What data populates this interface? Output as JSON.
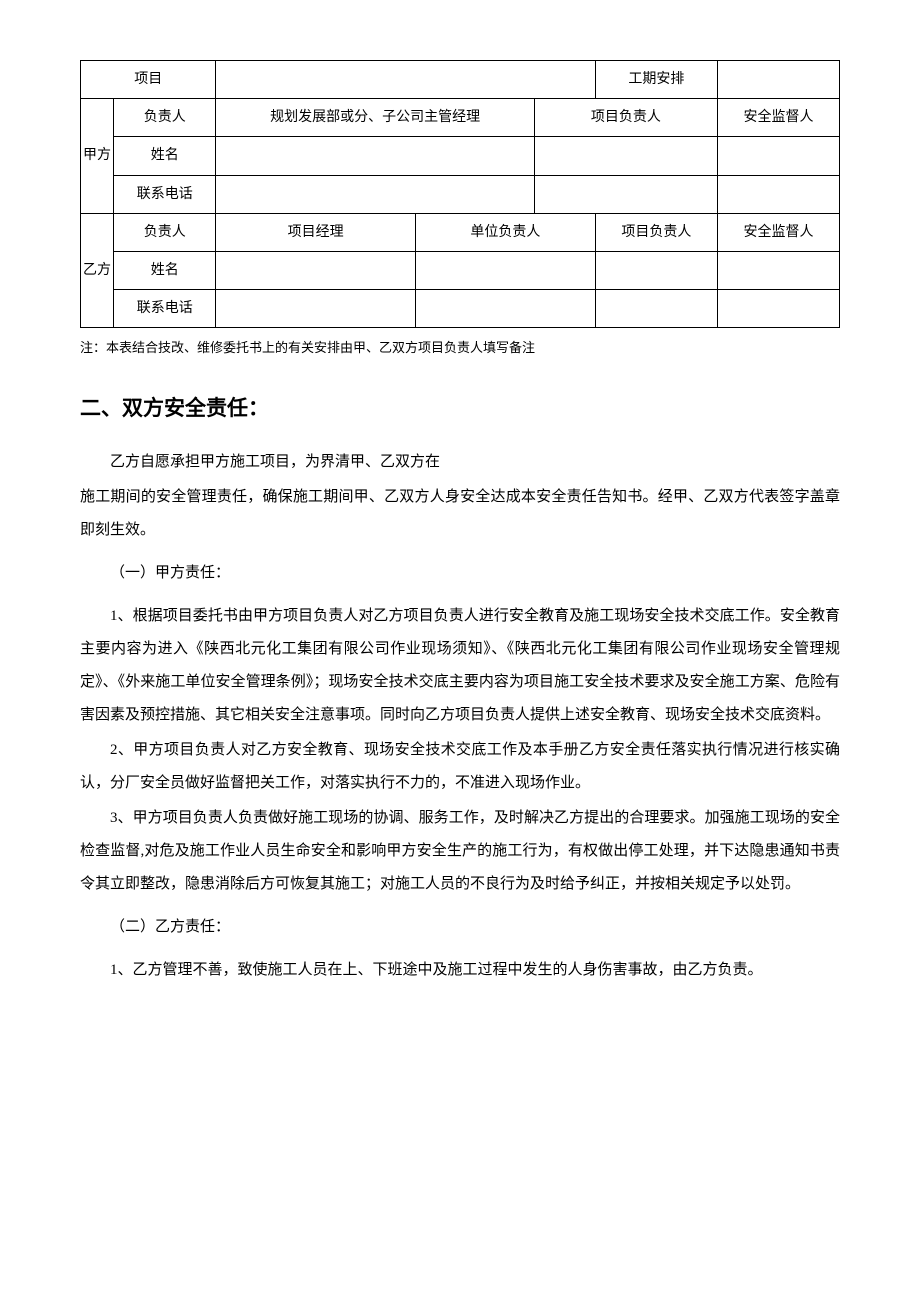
{
  "table": {
    "row_proj": {
      "label": "项目",
      "schedule_label": "工期安排"
    },
    "party_a": {
      "label": "甲方",
      "row1": {
        "c1": "负责人",
        "c2": "规划发展部或分、子公司主管经理",
        "c3": "项目负责人",
        "c4": "安全监督人"
      },
      "row2": {
        "c1": "姓名"
      },
      "row3": {
        "c1": "联系电话"
      }
    },
    "party_b": {
      "label": "乙方",
      "row1": {
        "c1": "负责人",
        "c2": "项目经理",
        "c3": "单位负责人",
        "c4": "项目负责人",
        "c5": "安全监督人"
      },
      "row2": {
        "c1": "姓名"
      },
      "row3": {
        "c1": "联系电话"
      }
    }
  },
  "note": "注：本表结合技改、维修委托书上的有关安排由甲、乙双方项目负责人填写备注",
  "section2": {
    "title": "二、双方安全责任：",
    "intro_line1": "乙方自愿承担甲方施工项目，为界清甲、乙双方在",
    "intro_line2": "施工期间的安全管理责任，确保施工期间甲、乙双方人身安全达成本安全责任告知书。经甲、乙双方代表签字盖章即刻生效。",
    "sub_a": {
      "title": "（一）甲方责任：",
      "p1": "1、根据项目委托书由甲方项目负责人对乙方项目负责人进行安全教育及施工现场安全技术交底工作。安全教育主要内容为进入《陕西北元化工集团有限公司作业现场须知》、《陕西北元化工集团有限公司作业现场安全管理规定》、《外来施工单位安全管理条例》；现场安全技术交底主要内容为项目施工安全技术要求及安全施工方案、危险有害因素及预控措施、其它相关安全注意事项。同时向乙方项目负责人提供上述安全教育、现场安全技术交底资料。",
      "p2": "2、甲方项目负责人对乙方安全教育、现场安全技术交底工作及本手册乙方安全责任落实执行情况进行核实确认，分厂安全员做好监督把关工作，对落实执行不力的，不准进入现场作业。",
      "p3": "3、甲方项目负责人负责做好施工现场的协调、服务工作，及时解决乙方提出的合理要求。加强施工现场的安全检查监督,对危及施工作业人员生命安全和影响甲方安全生产的施工行为，有权做出停工处理，并下达隐患通知书责令其立即整改，隐患消除后方可恢复其施工；对施工人员的不良行为及时给予纠正，并按相关规定予以处罚。"
    },
    "sub_b": {
      "title": "（二）乙方责任：",
      "p1": "1、乙方管理不善，致使施工人员在上、下班途中及施工过程中发生的人身伤害事故，由乙方负责。"
    }
  }
}
